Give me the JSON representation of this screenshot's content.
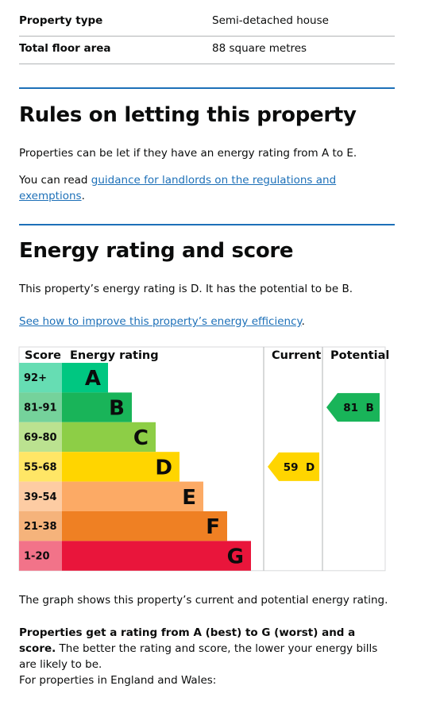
{
  "summary": [
    {
      "label": "Property type",
      "value": "Semi-detached house"
    },
    {
      "label": "Total floor area",
      "value": "88 square metres"
    }
  ],
  "letting": {
    "heading": "Rules on letting this property",
    "paragraph": "Properties can be let if they have an energy rating from A to E.",
    "guidance": {
      "prefix": "You can read ",
      "link": "guidance for landlords on the regulations and exemptions",
      "suffix": "."
    }
  },
  "energy": {
    "heading": "Energy rating and score",
    "paragraph": "This property’s energy rating is D. It has the potential to be B.",
    "improve": {
      "link": "See how to improve this property’s energy efficiency",
      "suffix": "."
    },
    "chart": {
      "headers": {
        "score": "Score",
        "rating": "Energy rating",
        "current": "Current",
        "potential": "Potential"
      },
      "bands": [
        {
          "score": "92+",
          "letter": "A",
          "color": "#00c781",
          "score_color": "#66ddb3"
        },
        {
          "score": "81-91",
          "letter": "B",
          "color": "#19b459",
          "score_color": "#75d29b"
        },
        {
          "score": "69-80",
          "letter": "C",
          "color": "#8dce46",
          "score_color": "#bbe290"
        },
        {
          "score": "55-68",
          "letter": "D",
          "color": "#ffd500",
          "score_color": "#ffe666"
        },
        {
          "score": "39-54",
          "letter": "E",
          "color": "#fcaa65",
          "score_color": "#fdcca3"
        },
        {
          "score": "21-38",
          "letter": "F",
          "color": "#ef8023",
          "score_color": "#f5b37b"
        },
        {
          "score": "1-20",
          "letter": "G",
          "color": "#e9153b",
          "score_color": "#f27389"
        }
      ],
      "current": {
        "score": 59,
        "rating": "D"
      },
      "potential": {
        "score": 81,
        "rating": "B"
      }
    },
    "graph_note": "The graph shows this property’s current and potential energy rating.",
    "rating_note": {
      "bold": "Properties get a rating from A (best) to G (worst) and a score.",
      "text": " The better the rating and score, the lower your energy bills are likely to be."
    },
    "regions": "For properties in England and Wales:"
  }
}
